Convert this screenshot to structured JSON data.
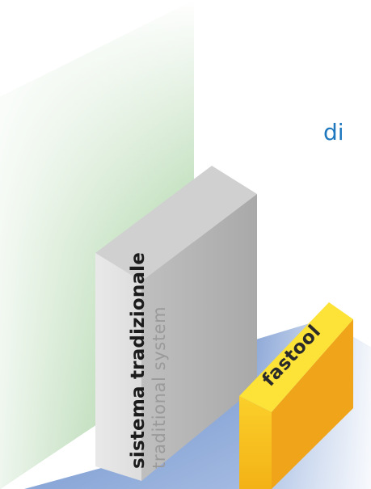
{
  "colors": {
    "floor_light": "#9bb6dc",
    "floor_dark": "#6d8ecb",
    "panel_green": "#9fcc98",
    "panel_fade": "#ffffff",
    "block_front": "#e3e3e3",
    "block_side": "#b9b9b9",
    "block_top": "#d0d0d0",
    "yellow_front": "#f5bd1e",
    "yellow_top": "#fde237",
    "yellow_side": "#f0a41a",
    "brand_text": "#2a2a2a",
    "accent_blue": "#1f78be",
    "label_dark": "#1c1c1c",
    "label_gray": "#9a9a9a"
  },
  "labels": {
    "di": "di",
    "traditional_it": "sistema tradizionale",
    "traditional_en": "traditional system",
    "brand": "fastool"
  },
  "icons": [
    "fastool-logo"
  ]
}
